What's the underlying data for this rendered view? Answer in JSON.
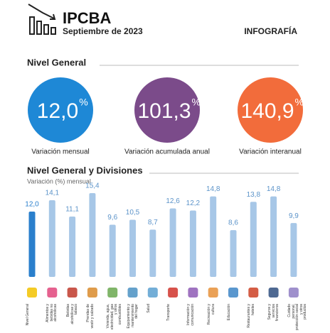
{
  "header": {
    "title": "IPCBA",
    "subtitle": "Septiembre de 2023",
    "tag": "INFOGRAFÍA"
  },
  "section_1": "Nivel General",
  "highlights": [
    {
      "value": "12,0",
      "unit": "%",
      "caption": "Variación mensual",
      "color": "#1e88d6"
    },
    {
      "value": "101,3",
      "unit": "%",
      "caption": "Variación acumulada anual",
      "color": "#7b4b8a"
    },
    {
      "value": "140,9",
      "unit": "%",
      "caption": "Variación interanual",
      "color": "#f26c3b"
    }
  ],
  "chart_data": {
    "type": "bar",
    "title": "Nivel General y Divisiones",
    "subtitle": "Variación (%) mensual",
    "categories": [
      "Nivel General",
      "Alimentos y bebidas no alcohólicas",
      "Bebidas alcohólicas y tabaco",
      "Prendas de vestir y calzado",
      "Vivienda, agua, electricidad, gas y otros combustibles",
      "Equipamiento y mantenimiento del hogar",
      "Salud",
      "Transporte",
      "Información y comunicación",
      "Recreación y cultura",
      "Educación",
      "Restaurantes y hoteles",
      "Seguros y servicios financieros",
      "Cuidado personal, protección social y otros productos"
    ],
    "values": [
      12.0,
      14.1,
      11.1,
      15.4,
      9.6,
      10.5,
      8.7,
      12.6,
      12.2,
      14.8,
      8.6,
      13.8,
      14.8,
      9.9
    ],
    "value_labels": [
      "12,0",
      "14,1",
      "11,1",
      "15,4",
      "9,6",
      "10,5",
      "8,7",
      "12,6",
      "12,2",
      "14,8",
      "8,6",
      "13,8",
      "14,8",
      "9,9"
    ],
    "colors": [
      "#2a7fcc",
      "#a7c7e7",
      "#a7c7e7",
      "#a7c7e7",
      "#a7c7e7",
      "#a7c7e7",
      "#a7c7e7",
      "#a7c7e7",
      "#a7c7e7",
      "#a7c7e7",
      "#a7c7e7",
      "#a7c7e7",
      "#a7c7e7",
      "#a7c7e7"
    ]
  }
}
